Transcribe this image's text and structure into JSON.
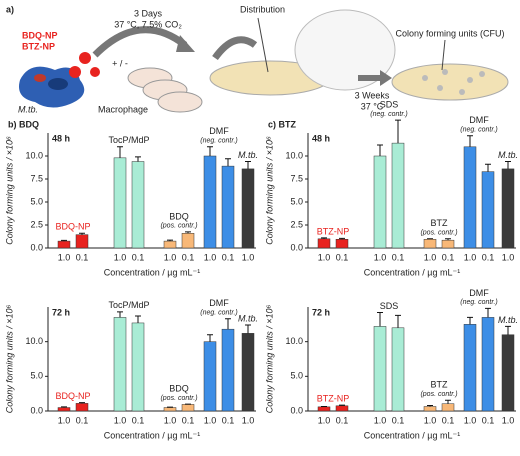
{
  "scheme": {
    "panel": "a)",
    "np_labels": [
      "BDQ-NP",
      "BTZ-NP"
    ],
    "incubation": [
      "3 Days",
      "37 °C, 7.5% CO₂"
    ],
    "treatment": "+ / -",
    "bacterium": "M.tb.",
    "cell": "Macrophage",
    "step": "Distribution",
    "result": "Colony forming units (CFU)",
    "growth": [
      "3 Weeks",
      "37 °C"
    ]
  },
  "chart_data": [
    {
      "type": "bar",
      "title": "b) BDQ",
      "time_label": "48 h",
      "y_label": "Colony forming units / ×10⁶",
      "x_label": "Concentration / µg mL⁻¹",
      "ylim": [
        0,
        12.5
      ],
      "yticks": [
        {
          "value": 0,
          "label": "0.0"
        },
        2.5,
        {
          "value": 5,
          "label": "5.0"
        },
        7.5,
        {
          "value": 10,
          "label": "10.0"
        }
      ],
      "groups": [
        {
          "label": "BDQ-NP",
          "label_color": "#e8231f",
          "color": "#e8231f",
          "categories": [
            "1.0",
            "0.1"
          ],
          "values": [
            0.75,
            1.45
          ],
          "errors": [
            0.08,
            0.15
          ]
        },
        {
          "label": "TocP/MdP",
          "color": "#a9ecd5",
          "categories": [
            "1.0",
            "0.1"
          ],
          "values": [
            9.8,
            9.4
          ],
          "errors": [
            1.2,
            0.5
          ]
        },
        {
          "label": "BDQ",
          "note": "(pos. contr.)",
          "color": "#f8b878",
          "categories": [
            "1.0",
            "0.1"
          ],
          "values": [
            0.75,
            1.6
          ],
          "errors": [
            0.1,
            0.15
          ]
        },
        {
          "label": "DMF",
          "note": "(neg. contr.)",
          "color": "#3d8ee6",
          "categories": [
            "1.0",
            "0.1"
          ],
          "values": [
            10.0,
            8.9
          ],
          "errors": [
            1.0,
            0.8
          ]
        },
        {
          "label": "M.tb.",
          "label_style": "italic",
          "color": "#3a3a3a",
          "categories": [
            "1.0"
          ],
          "values": [
            8.6
          ],
          "errors": [
            0.8
          ]
        }
      ]
    },
    {
      "type": "bar",
      "time_label": "72 h",
      "y_label": "Colony forming units / ×10⁶",
      "x_label": "Concentration / µg mL⁻¹",
      "ylim": [
        0,
        15
      ],
      "yticks": [
        {
          "value": 0,
          "label": "0.0"
        },
        {
          "value": 5,
          "label": "5.0"
        },
        {
          "value": 10,
          "label": "10.0"
        }
      ],
      "groups": [
        {
          "label": "BDQ-NP",
          "label_color": "#e8231f",
          "color": "#e8231f",
          "categories": [
            "1.0",
            "0.1"
          ],
          "values": [
            0.5,
            1.1
          ],
          "errors": [
            0.1,
            0.1
          ]
        },
        {
          "label": "TocP/MdP",
          "color": "#a9ecd5",
          "categories": [
            "1.0",
            "0.1"
          ],
          "values": [
            13.5,
            12.7
          ],
          "errors": [
            0.8,
            1.0
          ]
        },
        {
          "label": "BDQ",
          "note": "(pos. contr.)",
          "color": "#f8b878",
          "categories": [
            "1.0",
            "0.1"
          ],
          "values": [
            0.5,
            0.95
          ],
          "errors": [
            0.05,
            0.05
          ]
        },
        {
          "label": "DMF",
          "note": "(neg. contr.)",
          "color": "#3d8ee6",
          "categories": [
            "1.0",
            "0.1"
          ],
          "values": [
            10.0,
            11.8
          ],
          "errors": [
            1.0,
            1.5
          ]
        },
        {
          "label": "M.tb.",
          "label_style": "italic",
          "color": "#3a3a3a",
          "categories": [
            "1.0"
          ],
          "values": [
            11.2
          ],
          "errors": [
            1.2
          ]
        }
      ]
    },
    {
      "type": "bar",
      "title": "c) BTZ",
      "time_label": "48 h",
      "y_label": "Colony forming units / ×10⁶",
      "x_label": "Concentration / µg mL⁻¹",
      "ylim": [
        0,
        12.5
      ],
      "yticks": [
        {
          "value": 0,
          "label": "0.0"
        },
        2.5,
        {
          "value": 5,
          "label": "5.0"
        },
        7.5,
        {
          "value": 10,
          "label": "10.0"
        }
      ],
      "groups": [
        {
          "label": "BTZ-NP",
          "label_color": "#e8231f",
          "color": "#e8231f",
          "categories": [
            "1.0",
            "0.1"
          ],
          "values": [
            1.0,
            0.95
          ],
          "errors": [
            0.1,
            0.1
          ]
        },
        {
          "label": "SDS",
          "note": "(neg. contr.)",
          "color": "#a9ecd5",
          "categories": [
            "1.0",
            "0.1"
          ],
          "values": [
            10.0,
            11.4
          ],
          "errors": [
            1.2,
            2.5
          ]
        },
        {
          "label": "BTZ",
          "note": "(pos. contr.)",
          "color": "#f8b878",
          "categories": [
            "1.0",
            "0.1"
          ],
          "values": [
            0.95,
            0.85
          ],
          "errors": [
            0.05,
            0.15
          ]
        },
        {
          "label": "DMF",
          "note": "(neg. contr.)",
          "color": "#3d8ee6",
          "categories": [
            "1.0",
            "0.1"
          ],
          "values": [
            11.0,
            8.3
          ],
          "errors": [
            1.2,
            0.8
          ]
        },
        {
          "label": "M.tb.",
          "label_style": "italic",
          "color": "#3a3a3a",
          "categories": [
            "1.0"
          ],
          "values": [
            8.6
          ],
          "errors": [
            0.8
          ]
        }
      ]
    },
    {
      "type": "bar",
      "time_label": "72 h",
      "y_label": "Colony forming units / ×10⁶",
      "x_label": "Concentration / µg mL⁻¹",
      "ylim": [
        0,
        15
      ],
      "yticks": [
        {
          "value": 0,
          "label": "0.0"
        },
        {
          "value": 5,
          "label": "5.0"
        },
        {
          "value": 10,
          "label": "10.0"
        }
      ],
      "groups": [
        {
          "label": "BTZ-NP",
          "label_color": "#e8231f",
          "color": "#e8231f",
          "categories": [
            "1.0",
            "0.1"
          ],
          "values": [
            0.6,
            0.75
          ],
          "errors": [
            0.05,
            0.1
          ]
        },
        {
          "label": "SDS",
          "color": "#a9ecd5",
          "categories": [
            "1.0",
            "0.1"
          ],
          "values": [
            12.2,
            12.0
          ],
          "errors": [
            2.0,
            1.8
          ]
        },
        {
          "label": "BTZ",
          "note": "(pos. contr.)",
          "color": "#f8b878",
          "categories": [
            "1.0",
            "0.1"
          ],
          "values": [
            0.65,
            1.05
          ],
          "errors": [
            0.15,
            0.5
          ]
        },
        {
          "label": "DMF",
          "note": "(neg. contr.)",
          "color": "#3d8ee6",
          "categories": [
            "1.0",
            "0.1"
          ],
          "values": [
            12.5,
            13.5
          ],
          "errors": [
            1.0,
            1.3
          ]
        },
        {
          "label": "M.tb.",
          "label_style": "italic",
          "color": "#3a3a3a",
          "categories": [
            "1.0"
          ],
          "values": [
            11.0
          ],
          "errors": [
            1.2
          ]
        }
      ]
    }
  ]
}
